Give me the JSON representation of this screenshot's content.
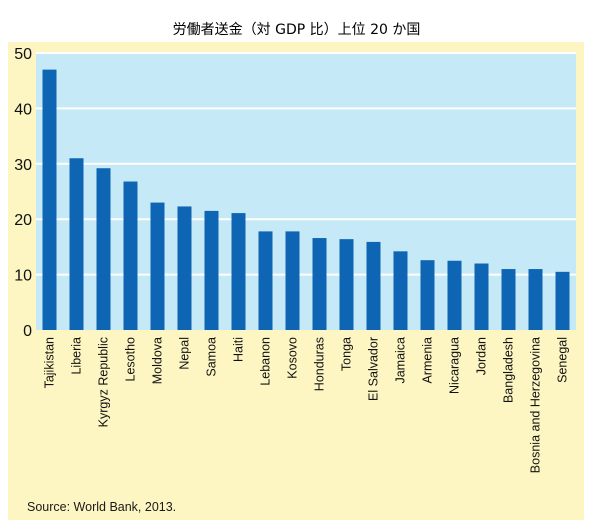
{
  "chart_data": {
    "type": "bar",
    "title": "労働者送金（対 GDP 比）上位 20 か国",
    "categories": [
      "Tajikistan",
      "Liberia",
      "Kyrgyz Republic",
      "Lesotho",
      "Moldova",
      "Nepal",
      "Samoa",
      "Haiti",
      "Lebanon",
      "Kosovo",
      "Honduras",
      "Tonga",
      "El Salvador",
      "Jamaica",
      "Armenia",
      "Nicaragua",
      "Jordan",
      "Bangladesh",
      "Bosnia and Herzegovina",
      "Senegal"
    ],
    "values": [
      47,
      31,
      29.2,
      26.8,
      23,
      22.3,
      21.5,
      21.1,
      17.8,
      17.8,
      16.6,
      16.4,
      15.9,
      14.2,
      12.6,
      12.5,
      12,
      11,
      11,
      10.5
    ],
    "yticks": [
      "0",
      "10",
      "20",
      "30",
      "40",
      "50"
    ],
    "ylim": [
      0,
      50
    ],
    "xlabel": "",
    "ylabel": "",
    "grid": true,
    "bar_color": "#0d65b3",
    "plot_background": "#c5e9f7",
    "grid_color": "#ffffff",
    "panel_background": "#fdf6c3",
    "source": "Source: World Bank, 2013."
  }
}
